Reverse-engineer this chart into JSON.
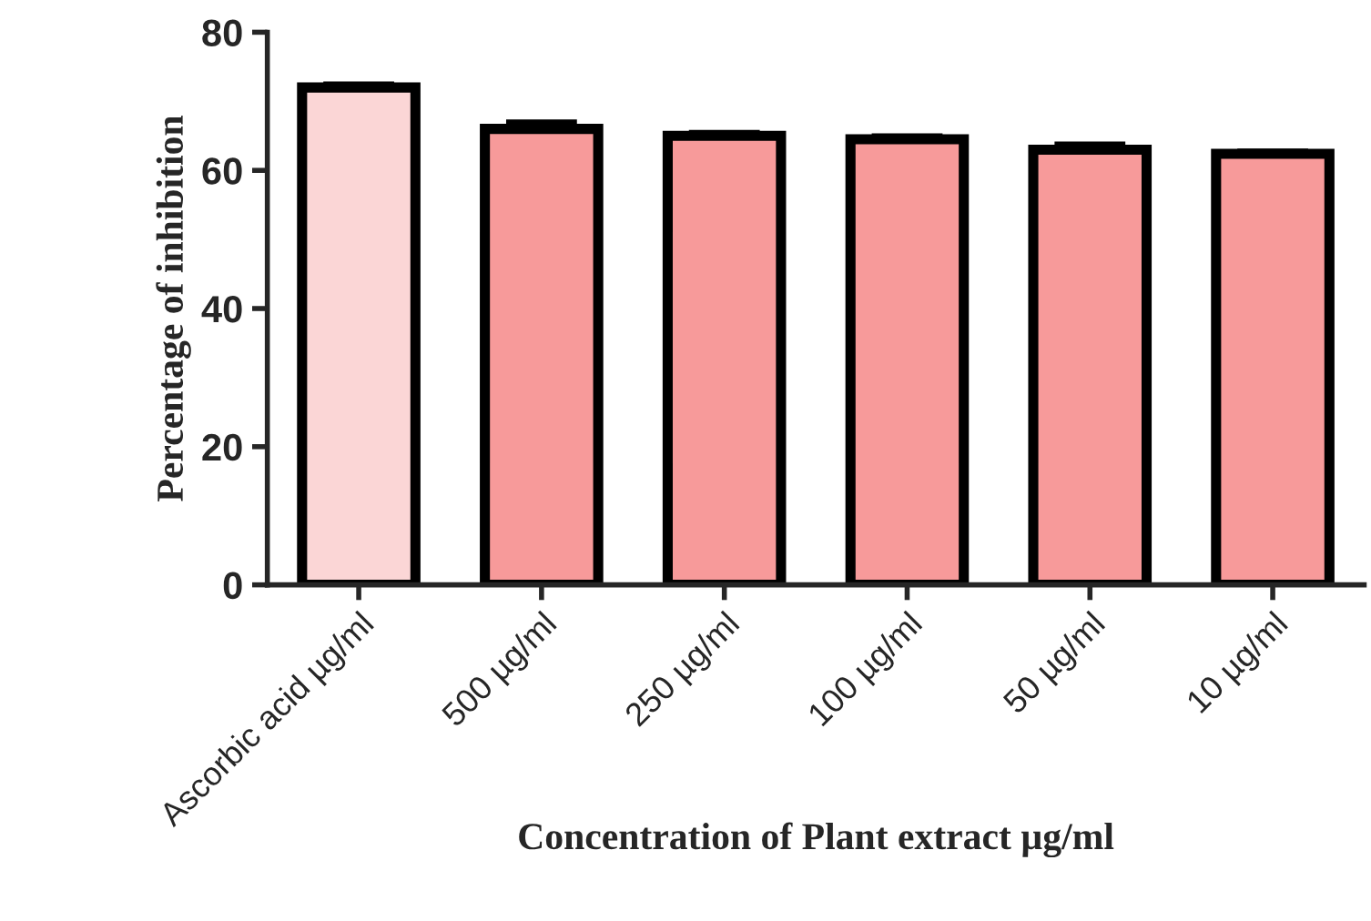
{
  "chart_data": {
    "type": "bar",
    "xlabel": "Concentration of Plant extract µg/ml",
    "ylabel": "Percentage of inhibition",
    "categories": [
      "Ascorbic acid µg/ml",
      "500 µg/ml",
      "250 µg/ml",
      "100 µg/ml",
      "50 µg/ml",
      "10 µg/ml"
    ],
    "values": [
      72,
      66,
      65,
      64.5,
      63,
      62.4
    ],
    "errors": [
      0.5,
      1,
      0.5,
      0.5,
      0.8,
      0.4
    ],
    "colors": [
      "#fbd6d6",
      "#f79a9a",
      "#f79a9a",
      "#f79a9a",
      "#f79a9a",
      "#f79a9a"
    ],
    "ylim": [
      0,
      80
    ],
    "yticks": [
      0,
      20,
      40,
      60,
      80
    ],
    "grid": false,
    "legend": false
  }
}
